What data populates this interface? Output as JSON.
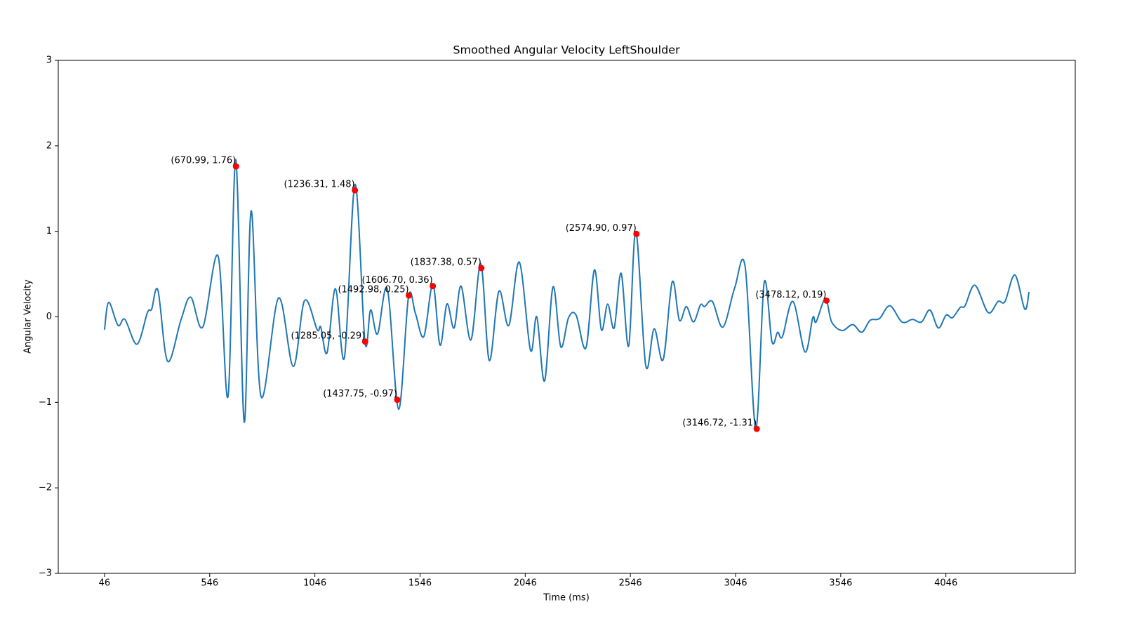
{
  "chart_data": {
    "type": "line",
    "title": "Smoothed Angular Velocity LeftShoulder",
    "xlabel": "Time (ms)",
    "ylabel": "Angular Velocity",
    "xlim": [
      -174,
      4661
    ],
    "ylim": [
      -3,
      3
    ],
    "xticks": [
      46,
      546,
      1046,
      1546,
      2046,
      2546,
      3046,
      3546,
      4046
    ],
    "yticks": [
      {
        "value": -3,
        "label": "−3"
      },
      {
        "value": -2,
        "label": "−2"
      },
      {
        "value": -1,
        "label": "−1"
      },
      0,
      1,
      2,
      3
    ],
    "series": [
      {
        "color": "#1f77b4",
        "x": [
          46,
          66,
          110,
          143,
          200,
          250,
          270,
          300,
          346,
          410,
          456,
          513,
          586,
          633,
          670,
          710,
          743,
          790,
          873,
          943,
          997,
          1057,
          1074,
          1104,
          1144,
          1187,
          1237,
          1284,
          1311,
          1344,
          1391,
          1444,
          1491,
          1524,
          1564,
          1607,
          1641,
          1674,
          1708,
          1741,
          1788,
          1835,
          1875,
          1921,
          1968,
          2018,
          2071,
          2101,
          2138,
          2178,
          2215,
          2252,
          2288,
          2335,
          2375,
          2408,
          2438,
          2469,
          2502,
          2538,
          2572,
          2619,
          2659,
          2702,
          2745,
          2779,
          2812,
          2846,
          2879,
          2899,
          2936,
          2986,
          3042,
          3092,
          3142,
          3182,
          3219,
          3246,
          3269,
          3319,
          3376,
          3413,
          3429,
          3473,
          3503,
          3553,
          3603,
          3646,
          3686,
          3730,
          3780,
          3837,
          3887,
          3930,
          3970,
          4010,
          4047,
          4077,
          4114,
          4137,
          4184,
          4247,
          4294,
          4327,
          4374,
          4421,
          4441
        ],
        "values": [
          -0.15,
          0.17,
          -0.1,
          -0.03,
          -0.32,
          0.05,
          0.09,
          0.31,
          -0.52,
          -0.03,
          0.23,
          -0.12,
          0.71,
          -0.93,
          1.84,
          -1.23,
          1.24,
          -0.93,
          0.22,
          -0.58,
          0.19,
          -0.15,
          -0.12,
          -0.42,
          0.33,
          -0.47,
          1.55,
          -0.29,
          0.08,
          -0.2,
          0.32,
          -1.08,
          0.23,
          0.04,
          -0.23,
          0.38,
          -0.33,
          0.15,
          -0.13,
          0.36,
          -0.27,
          0.62,
          -0.51,
          0.3,
          -0.1,
          0.64,
          -0.39,
          0,
          -0.75,
          0.35,
          -0.35,
          -0.01,
          0.02,
          -0.36,
          0.55,
          -0.15,
          0.15,
          -0.13,
          0.51,
          -0.34,
          1.0,
          -0.57,
          -0.14,
          -0.5,
          0.41,
          -0.04,
          0.12,
          -0.06,
          0.14,
          0.12,
          0.18,
          -0.12,
          0.34,
          0.58,
          -1.3,
          0.4,
          -0.29,
          -0.18,
          -0.23,
          0.18,
          -0.41,
          -0.01,
          -0.06,
          0.21,
          -0.06,
          -0.16,
          -0.09,
          -0.18,
          -0.04,
          -0.02,
          0.13,
          -0.06,
          -0.03,
          -0.06,
          0.08,
          -0.13,
          0.02,
          -0.01,
          0.11,
          0.13,
          0.37,
          0.05,
          0.18,
          0.18,
          0.49,
          0.09,
          0.29
        ]
      },
      {
        "type": "scatter",
        "color": "#ff0000",
        "x": [
          670.99,
          1236.31,
          1285.05,
          1437.75,
          1492.98,
          1606.7,
          1837.38,
          2574.9,
          3146.72,
          3478.12
        ],
        "values": [
          1.76,
          1.48,
          -0.29,
          -0.97,
          0.25,
          0.36,
          0.57,
          0.97,
          -1.31,
          0.19
        ],
        "value_labels": [
          "(670.99, 1.76)",
          "(1236.31, 1.48)",
          "(1285.05, -0.29)",
          "(1437.75, -0.97)",
          "(1492.98, 0.25)",
          "(1606.70, 0.36)",
          "(1837.38, 0.57)",
          "(2574.90, 0.97)",
          "(3146.72, -1.31)",
          "(3478.12, 0.19)"
        ]
      }
    ]
  }
}
